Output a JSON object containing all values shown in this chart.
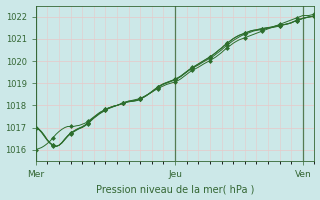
{
  "xlabel": "Pression niveau de la mer( hPa )",
  "bg_color": "#cce8e8",
  "grid_color": "#e8c8c8",
  "line_color": "#2d6e2d",
  "tick_color": "#336633",
  "label_color": "#336633",
  "ylim": [
    1015.5,
    1022.5
  ],
  "yticks": [
    1016,
    1017,
    1018,
    1019,
    1020,
    1021,
    1022
  ],
  "xtick_labels": [
    "Mer",
    "Jeu",
    "Ven"
  ],
  "xtick_positions": [
    0,
    48,
    92
  ],
  "xlim": [
    0,
    96
  ],
  "n_points": 97,
  "series": [
    [
      1016.0,
      1016.05,
      1016.1,
      1016.18,
      1016.28,
      1016.4,
      1016.55,
      1016.7,
      1016.82,
      1016.92,
      1017.0,
      1017.05,
      1017.05,
      1017.05,
      1017.08,
      1017.1,
      1017.15,
      1017.2,
      1017.28,
      1017.38,
      1017.48,
      1017.58,
      1017.68,
      1017.75,
      1017.82,
      1017.88,
      1017.92,
      1017.97,
      1018.0,
      1018.05,
      1018.1,
      1018.15,
      1018.2,
      1018.22,
      1018.25,
      1018.28,
      1018.32,
      1018.38,
      1018.45,
      1018.52,
      1018.6,
      1018.68,
      1018.76,
      1018.82,
      1018.88,
      1018.94,
      1018.98,
      1019.02,
      1019.06,
      1019.12,
      1019.2,
      1019.3,
      1019.4,
      1019.5,
      1019.58,
      1019.65,
      1019.72,
      1019.8,
      1019.88,
      1019.95,
      1020.02,
      1020.1,
      1020.18,
      1020.28,
      1020.38,
      1020.5,
      1020.6,
      1020.7,
      1020.8,
      1020.88,
      1020.95,
      1021.0,
      1021.05,
      1021.1,
      1021.15,
      1021.2,
      1021.25,
      1021.3,
      1021.35,
      1021.4,
      1021.45,
      1021.5,
      1021.55,
      1021.6,
      1021.65,
      1021.7,
      1021.75,
      1021.8,
      1021.85,
      1021.9,
      1021.95,
      1022.0,
      1022.05,
      1022.05,
      1022.05,
      1022.08,
      1022.1
    ],
    [
      1017.0,
      1016.95,
      1016.82,
      1016.65,
      1016.45,
      1016.3,
      1016.2,
      1016.15,
      1016.2,
      1016.3,
      1016.45,
      1016.6,
      1016.72,
      1016.8,
      1016.88,
      1016.95,
      1017.0,
      1017.08,
      1017.18,
      1017.3,
      1017.42,
      1017.52,
      1017.62,
      1017.7,
      1017.78,
      1017.85,
      1017.9,
      1017.95,
      1018.0,
      1018.05,
      1018.1,
      1018.15,
      1018.18,
      1018.2,
      1018.22,
      1018.25,
      1018.3,
      1018.36,
      1018.43,
      1018.52,
      1018.6,
      1018.7,
      1018.8,
      1018.88,
      1018.95,
      1019.0,
      1019.05,
      1019.1,
      1019.15,
      1019.22,
      1019.3,
      1019.4,
      1019.5,
      1019.6,
      1019.68,
      1019.75,
      1019.82,
      1019.9,
      1019.98,
      1020.05,
      1020.12,
      1020.2,
      1020.3,
      1020.4,
      1020.5,
      1020.62,
      1020.72,
      1020.82,
      1020.92,
      1021.0,
      1021.08,
      1021.15,
      1021.2,
      1021.25,
      1021.3,
      1021.35,
      1021.38,
      1021.4,
      1021.42,
      1021.45,
      1021.48,
      1021.5,
      1021.52,
      1021.55,
      1021.58,
      1021.62,
      1021.65,
      1021.68,
      1021.72,
      1021.78,
      1021.82,
      1021.88,
      1021.92,
      1021.95,
      1021.98,
      1022.0,
      1022.02
    ],
    [
      1017.0,
      1016.92,
      1016.78,
      1016.6,
      1016.42,
      1016.28,
      1016.18,
      1016.15,
      1016.2,
      1016.32,
      1016.48,
      1016.62,
      1016.75,
      1016.82,
      1016.9,
      1016.97,
      1017.02,
      1017.1,
      1017.2,
      1017.32,
      1017.44,
      1017.54,
      1017.64,
      1017.72,
      1017.8,
      1017.87,
      1017.92,
      1017.97,
      1018.0,
      1018.05,
      1018.1,
      1018.14,
      1018.17,
      1018.18,
      1018.2,
      1018.22,
      1018.28,
      1018.35,
      1018.43,
      1018.52,
      1018.62,
      1018.72,
      1018.82,
      1018.9,
      1018.97,
      1019.02,
      1019.07,
      1019.12,
      1019.17,
      1019.24,
      1019.32,
      1019.42,
      1019.52,
      1019.62,
      1019.7,
      1019.78,
      1019.86,
      1019.94,
      1020.02,
      1020.1,
      1020.18,
      1020.27,
      1020.37,
      1020.48,
      1020.58,
      1020.7,
      1020.8,
      1020.9,
      1021.0,
      1021.08,
      1021.15,
      1021.2,
      1021.25,
      1021.3,
      1021.35,
      1021.38,
      1021.4,
      1021.43,
      1021.45,
      1021.48,
      1021.5,
      1021.52,
      1021.55,
      1021.58,
      1021.6,
      1021.62,
      1021.65,
      1021.68,
      1021.72,
      1021.78,
      1021.82,
      1021.87,
      1021.92,
      1021.95,
      1021.98,
      1022.0,
      1022.02
    ],
    [
      1017.0,
      1016.93,
      1016.8,
      1016.62,
      1016.44,
      1016.3,
      1016.2,
      1016.16,
      1016.2,
      1016.32,
      1016.48,
      1016.63,
      1016.76,
      1016.84,
      1016.92,
      1016.98,
      1017.04,
      1017.12,
      1017.22,
      1017.34,
      1017.46,
      1017.56,
      1017.66,
      1017.74,
      1017.82,
      1017.88,
      1017.93,
      1017.97,
      1018.0,
      1018.04,
      1018.09,
      1018.13,
      1018.16,
      1018.18,
      1018.2,
      1018.23,
      1018.29,
      1018.36,
      1018.44,
      1018.53,
      1018.63,
      1018.73,
      1018.83,
      1018.91,
      1018.98,
      1019.03,
      1019.08,
      1019.13,
      1019.18,
      1019.25,
      1019.33,
      1019.43,
      1019.53,
      1019.63,
      1019.71,
      1019.79,
      1019.87,
      1019.95,
      1020.03,
      1020.11,
      1020.19,
      1020.28,
      1020.38,
      1020.49,
      1020.59,
      1020.71,
      1020.81,
      1020.91,
      1021.01,
      1021.09,
      1021.16,
      1021.21,
      1021.26,
      1021.31,
      1021.36,
      1021.39,
      1021.41,
      1021.44,
      1021.46,
      1021.49,
      1021.51,
      1021.53,
      1021.56,
      1021.59,
      1021.61,
      1021.63,
      1021.66,
      1021.69,
      1021.73,
      1021.79,
      1021.83,
      1021.88,
      1021.93,
      1021.96,
      1021.99,
      1022.01,
      1022.03
    ]
  ],
  "marker_every": 6,
  "marker_size": 2.5,
  "vline_color": "#336633",
  "vline_positions": [
    0,
    48,
    92
  ],
  "xlabel_fontsize": 7,
  "ytick_fontsize": 6,
  "xtick_fontsize": 6.5
}
